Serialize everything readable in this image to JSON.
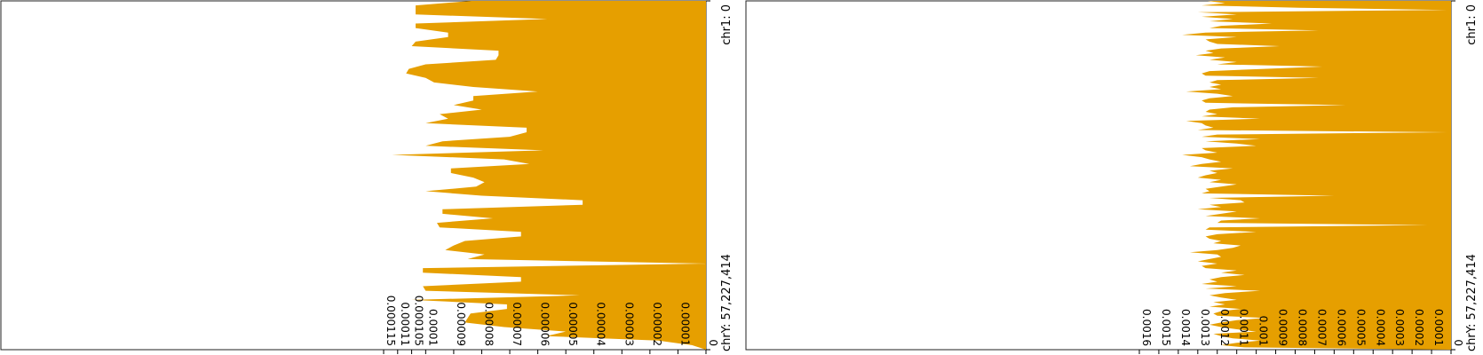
{
  "colors": {
    "fill": "#E69F00",
    "frame": "#222222",
    "background": "#ffffff"
  },
  "chart_data": [
    {
      "type": "area",
      "orientation": "rotated-90",
      "genome_start_label": "chr1: 0",
      "genome_end_label": "chrY: 57,227,414",
      "ylim": [
        0,
        0.000115
      ],
      "y_tick_labels": [
        "0",
        "0.00001",
        "0.00002",
        "0.00003",
        "0.00004",
        "0.00005",
        "0.00006",
        "0.00007",
        "0.00008",
        "0.00009",
        "0.0001",
        "0.000105",
        "0.00011",
        "0.000115"
      ],
      "y_tick_values": [
        0,
        1e-05,
        2e-05,
        3e-05,
        4e-05,
        5e-05,
        6e-05,
        7e-05,
        8e-05,
        9e-05,
        0.0001,
        0.000105,
        0.00011,
        0.000115
      ],
      "values": [
        8.36e-05,
        0.0001036,
        0.0001036,
        0.0001036,
        5.66e-05,
        0.0001036,
        0.0001036,
        9.2e-05,
        9.2e-05,
        0.0001036,
        0.000105,
        7.4e-05,
        7.4e-05,
        7.5e-05,
        0.0001,
        0.000106,
        0.000107,
        0.0001,
        9.7e-05,
        8.3e-05,
        6e-05,
        8.3e-05,
        8.3e-05,
        9e-05,
        8e-05,
        9.5e-05,
        9.2e-05,
        0.0001,
        6.4e-05,
        6.4e-05,
        7e-05,
        9.4e-05,
        0.0001,
        5.8e-05,
        0.000112,
        7.2e-05,
        6.3e-05,
        9.1e-05,
        9.1e-05,
        8.3e-05,
        7.9e-05,
        8.2e-05,
        0.0001,
        8e-05,
        4.4e-05,
        4.4e-05,
        9.4e-05,
        9.4e-05,
        7.6e-05,
        9.6e-05,
        9.5e-05,
        6.6e-05,
        6.6e-05,
        8.6e-05,
        9e-05,
        9.3e-05,
        7.9e-05,
        8.5e-05,
        0.0,
        0.000101,
        0.000101,
        6.6e-05,
        6.6e-05,
        0.000101,
        0.0001,
        4.5e-05,
        0.000105,
        7.1e-05,
        7.1e-05,
        8.4e-05,
        8.5e-05,
        8.6e-05,
        7.2e-05,
        5e-05,
        5.7e-05,
        1.7e-05,
        5e-06,
        0.0
      ]
    },
    {
      "type": "area",
      "orientation": "rotated-90",
      "genome_start_label": "chr1: 0",
      "genome_end_label": "chrY: 57,227,414",
      "ylim": [
        0,
        0.0016
      ],
      "y_tick_labels": [
        "0",
        "0.0001",
        "0.0002",
        "0.0003",
        "0.0004",
        "0.0005",
        "0.0006",
        "0.0007",
        "0.0008",
        "0.0009",
        "0.001",
        "0.0011",
        "0.0012",
        "0.0013",
        "0.0014",
        "0.0015",
        "0.0016"
      ],
      "y_tick_values": [
        0,
        0.0001,
        0.0002,
        0.0003,
        0.0004,
        0.0005,
        0.0006,
        0.0007,
        0.0008,
        0.0009,
        0.001,
        0.0011,
        0.0012,
        0.0013,
        0.0014,
        0.0015,
        0.0016
      ],
      "values": [
        0.00125,
        0.00116,
        0.00128,
        0.00078,
        2e-05,
        0.0013,
        0.0011,
        0.00128,
        0.00112,
        0.00124,
        0.00092,
        0.00118,
        0.00124,
        0.00068,
        0.00126,
        0.00138,
        0.0011,
        0.00126,
        0.00124,
        0.0012,
        0.00088,
        0.00118,
        0.00126,
        0.00122,
        0.00131,
        0.00116,
        0.00124,
        0.0011,
        0.0012,
        0.00066,
        0.00096,
        0.00124,
        0.00128,
        0.00126,
        0.00068,
        0.0012,
        0.00124,
        0.00118,
        0.00124,
        0.00118,
        0.00136,
        0.0012,
        0.00112,
        0.00124,
        0.00128,
        0.00126,
        0.00054,
        0.00112,
        0.00124,
        0.00126,
        0.0012,
        0.00128,
        0.00098,
        0.00136,
        0.00128,
        0.00126,
        0.00122,
        0.0013,
        2e-05,
        0.0012,
        0.00128,
        0.00098,
        0.00126,
        0.0011,
        0.001,
        0.00128,
        0.00126,
        0.0012,
        0.00138,
        0.00128,
        0.00124,
        0.00118,
        0.00128,
        0.00134,
        0.00112,
        0.00124,
        0.0012,
        0.00126,
        0.0013,
        0.00118,
        0.00124,
        0.0011,
        0.00118,
        0.00126,
        0.00124,
        0.00128,
        0.0006,
        0.00124,
        0.00108,
        0.00106,
        0.00124,
        0.00118,
        0.0013,
        0.0011,
        0.00118,
        0.00126,
        0.00098,
        0.00118,
        0.0012,
        0.00012,
        0.00124,
        0.00126,
        0.001,
        0.0012,
        0.00126,
        0.00124,
        0.00118,
        0.00122,
        0.00108,
        0.00112,
        0.0012,
        0.00134,
        0.0012,
        0.00118,
        0.00124,
        0.0013,
        0.0012,
        0.00128,
        0.00126,
        0.0011,
        0.00118,
        0.00106,
        0.00118,
        0.00124,
        0.0012,
        0.00128,
        0.0011,
        0.00126,
        0.00098,
        0.00116,
        0.00124,
        0.00118,
        0.0011,
        0.00122,
        0.00116,
        0.00124,
        0.00108,
        0.00118,
        0.00122,
        0.0012,
        0.00096,
        0.0011,
        0.00118,
        0.00124,
        0.00118,
        0.0011,
        0.001,
        0.00122,
        0.00118,
        0.00112,
        0.00098,
        0.0011,
        0.00118,
        0.00106,
        0.0
      ]
    }
  ]
}
